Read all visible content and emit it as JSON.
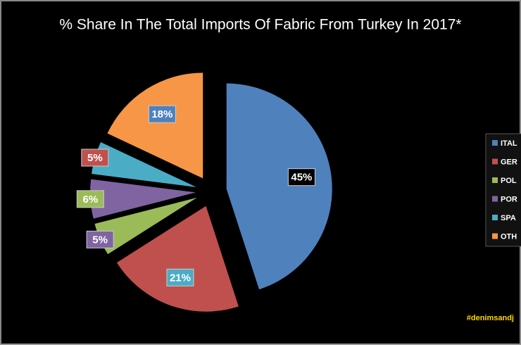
{
  "chart_data": {
    "type": "pie",
    "title": "% Share In The Total Imports Of Fabric From Turkey In 2017*",
    "categories": [
      "ITAL",
      "GER",
      "POL",
      "POR",
      "SPA",
      "OTH"
    ],
    "values": [
      45,
      21,
      5,
      6,
      5,
      18
    ],
    "value_labels": [
      "45%",
      "21%",
      "5%",
      "6%",
      "5%",
      "18%"
    ],
    "colors": [
      "#4f81bd",
      "#c0504d",
      "#9bbb59",
      "#8064a2",
      "#4bacc6",
      "#f79646"
    ],
    "label_colors": [
      "#000000",
      "#4bacc6",
      "#8064a2",
      "#9bbb59",
      "#c0504d",
      "#4f81bd"
    ],
    "watermark": "#denimsandj"
  }
}
